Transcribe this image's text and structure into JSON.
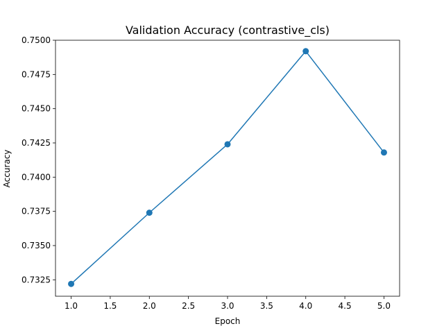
{
  "chart_data": {
    "type": "line",
    "title": "Validation Accuracy (contrastive_cls)",
    "xlabel": "Epoch",
    "ylabel": "Accuracy",
    "x": [
      1,
      2,
      3,
      4,
      5
    ],
    "series": [
      {
        "values": [
          0.7322,
          0.7374,
          0.7424,
          0.7492,
          0.7418
        ],
        "color": "#1f77b4",
        "marker": "circle"
      }
    ],
    "xlim": [
      0.8,
      5.2
    ],
    "ylim": [
      0.7313,
      0.75
    ],
    "xticks": [
      "1.0",
      "1.5",
      "2.0",
      "2.5",
      "3.0",
      "3.5",
      "4.0",
      "4.5",
      "5.0"
    ],
    "yticks": [
      "0.7325",
      "0.7350",
      "0.7375",
      "0.7400",
      "0.7425",
      "0.7450",
      "0.7475",
      "0.7500"
    ],
    "grid": false,
    "legend": "none"
  }
}
